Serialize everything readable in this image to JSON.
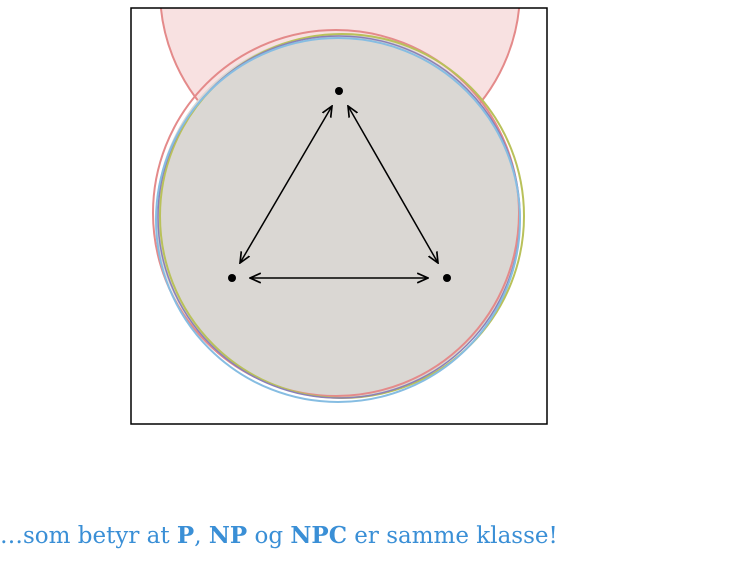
{
  "caption": {
    "prefix": "…som betyr at ",
    "class_p": "P",
    "sep1": ", ",
    "class_np": "NP",
    "sep2": " og ",
    "class_npc": "NPC",
    "suffix": " er samme klasse!"
  },
  "colors": {
    "caption_text": "#3a8fd6",
    "frame": "#000000",
    "red_circle_stroke": "#e48a8a",
    "red_circle_fill": "#f8e1e1",
    "green_circle_stroke": "#b9c15a",
    "blue_circle_stroke": "#86bde2",
    "purple_circle_stroke": "#8a7fb8",
    "gray_fill": "#dad7d3",
    "node": "#000000",
    "arrow": "#000000"
  }
}
